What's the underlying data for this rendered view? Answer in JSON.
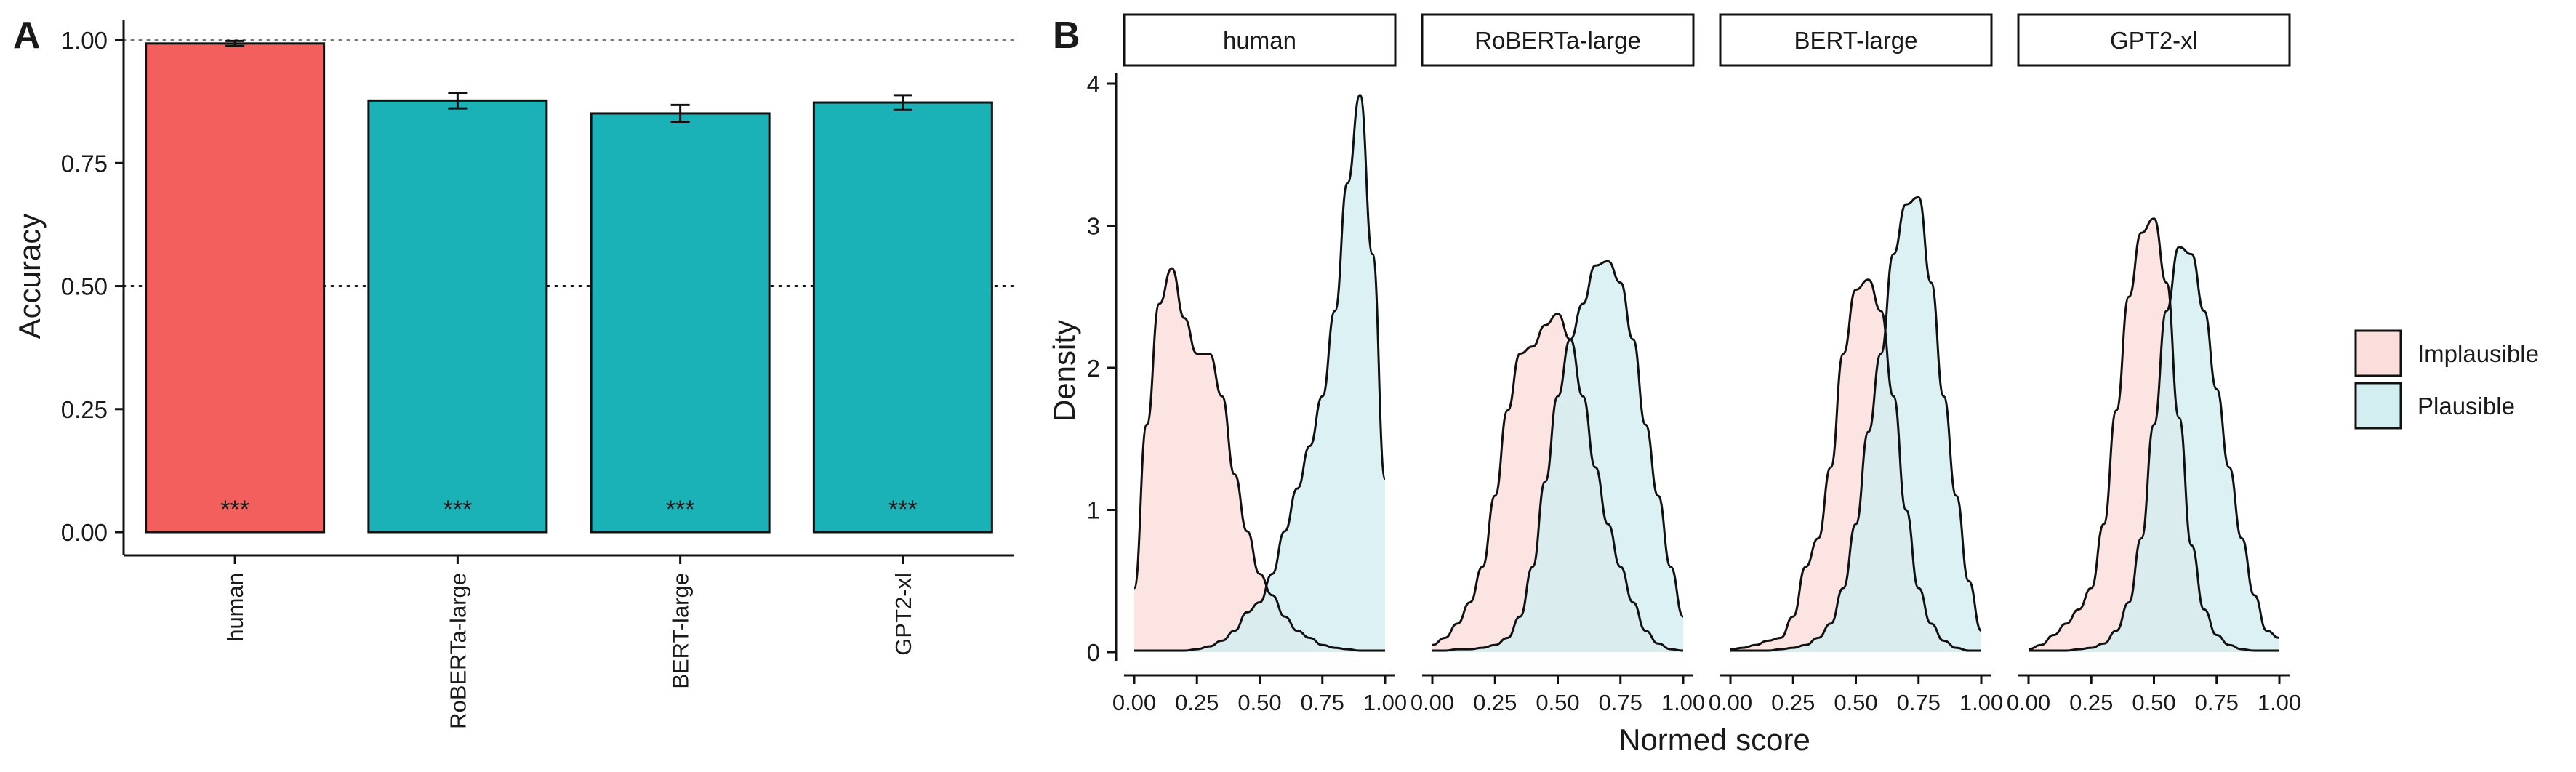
{
  "panel_a": {
    "label": "A",
    "chart_data": {
      "type": "bar",
      "categories": [
        "human",
        "RoBERTa-large",
        "BERT-large",
        "GPT2-xl"
      ],
      "values": [
        0.993,
        0.877,
        0.851,
        0.873
      ],
      "errors": [
        0.005,
        0.016,
        0.017,
        0.015
      ],
      "colors": [
        "#F25F5C",
        "#1AB2B7",
        "#1AB2B7",
        "#1AB2B7"
      ],
      "significance": [
        "***",
        "***",
        "***",
        "***"
      ],
      "ylabel": "Accuracy",
      "xlabel": "",
      "ylim": [
        0,
        1.04
      ],
      "yticks": [
        "0.00",
        "0.25",
        "0.50",
        "0.75",
        "1.00"
      ],
      "reference_lines": [
        {
          "y": 1.0,
          "style": "dotted-grey"
        },
        {
          "y": 0.5,
          "style": "dotted-black"
        }
      ]
    }
  },
  "panel_b": {
    "label": "B",
    "chart_data": {
      "type": "area",
      "facets": [
        "human",
        "RoBERTa-large",
        "BERT-large",
        "GPT2-xl"
      ],
      "xlabel": "Normed score",
      "ylabel": "Density",
      "xlim": [
        0,
        1
      ],
      "ylim": [
        0,
        4
      ],
      "xticks": [
        "0.00",
        "0.25",
        "0.50",
        "0.75",
        "1.00"
      ],
      "yticks": [
        "0",
        "1",
        "2",
        "3",
        "4"
      ],
      "legend": {
        "position": "right",
        "items": [
          {
            "label": "Implausible",
            "color": "#FBDDDC"
          },
          {
            "label": "Plausible",
            "color": "#D2EEF0"
          }
        ]
      },
      "series": {
        "Implausible": [
          {
            "facet": "human",
            "x": [
              0,
              0.05,
              0.1,
              0.15,
              0.2,
              0.25,
              0.3,
              0.35,
              0.4,
              0.45,
              0.5,
              0.55,
              0.6,
              0.65,
              0.7,
              0.75,
              0.8,
              0.85,
              0.9,
              0.95,
              1.0
            ],
            "y": [
              0.45,
              1.6,
              2.45,
              2.7,
              2.35,
              2.1,
              2.1,
              1.8,
              1.25,
              0.85,
              0.55,
              0.4,
              0.25,
              0.15,
              0.1,
              0.05,
              0.03,
              0.02,
              0.01,
              0.01,
              0.01
            ]
          },
          {
            "facet": "RoBERTa-large",
            "x": [
              0,
              0.05,
              0.1,
              0.15,
              0.2,
              0.25,
              0.3,
              0.35,
              0.4,
              0.45,
              0.5,
              0.55,
              0.6,
              0.65,
              0.7,
              0.75,
              0.8,
              0.85,
              0.9,
              0.95,
              1.0
            ],
            "y": [
              0.05,
              0.1,
              0.2,
              0.35,
              0.6,
              1.1,
              1.7,
              2.1,
              2.15,
              2.3,
              2.38,
              2.2,
              1.8,
              1.3,
              0.9,
              0.6,
              0.35,
              0.15,
              0.06,
              0.02,
              0.01
            ]
          },
          {
            "facet": "BERT-large",
            "x": [
              0,
              0.05,
              0.1,
              0.15,
              0.2,
              0.25,
              0.3,
              0.35,
              0.4,
              0.45,
              0.5,
              0.55,
              0.6,
              0.65,
              0.7,
              0.75,
              0.8,
              0.85,
              0.9,
              0.95,
              1.0
            ],
            "y": [
              0.02,
              0.03,
              0.05,
              0.08,
              0.1,
              0.25,
              0.6,
              0.8,
              1.3,
              2.1,
              2.55,
              2.62,
              2.4,
              1.8,
              1.0,
              0.45,
              0.2,
              0.08,
              0.03,
              0.01,
              0.01
            ]
          },
          {
            "facet": "GPT2-xl",
            "x": [
              0,
              0.05,
              0.1,
              0.15,
              0.2,
              0.25,
              0.3,
              0.35,
              0.4,
              0.45,
              0.5,
              0.55,
              0.6,
              0.65,
              0.7,
              0.75,
              0.8,
              0.85,
              0.9,
              0.95,
              1.0
            ],
            "y": [
              0.02,
              0.05,
              0.12,
              0.2,
              0.3,
              0.45,
              0.9,
              1.7,
              2.5,
              2.95,
              3.05,
              2.6,
              1.65,
              0.75,
              0.3,
              0.12,
              0.05,
              0.02,
              0.01,
              0.01,
              0.01
            ]
          }
        ],
        "Plausible": [
          {
            "facet": "human",
            "x": [
              0,
              0.05,
              0.1,
              0.15,
              0.2,
              0.25,
              0.3,
              0.35,
              0.4,
              0.45,
              0.5,
              0.55,
              0.6,
              0.65,
              0.7,
              0.75,
              0.8,
              0.85,
              0.9,
              0.95,
              1.0
            ],
            "y": [
              0.01,
              0.01,
              0.01,
              0.01,
              0.01,
              0.02,
              0.04,
              0.08,
              0.15,
              0.28,
              0.35,
              0.55,
              0.85,
              1.15,
              1.45,
              1.8,
              2.4,
              3.3,
              3.92,
              2.8,
              1.22
            ]
          },
          {
            "facet": "RoBERTa-large",
            "x": [
              0,
              0.05,
              0.1,
              0.15,
              0.2,
              0.25,
              0.3,
              0.35,
              0.4,
              0.45,
              0.5,
              0.55,
              0.6,
              0.65,
              0.7,
              0.75,
              0.8,
              0.85,
              0.9,
              0.95,
              1.0
            ],
            "y": [
              0.01,
              0.01,
              0.02,
              0.02,
              0.03,
              0.05,
              0.1,
              0.25,
              0.6,
              1.2,
              1.8,
              2.2,
              2.45,
              2.72,
              2.75,
              2.6,
              2.2,
              1.6,
              1.1,
              0.6,
              0.25
            ]
          },
          {
            "facet": "BERT-large",
            "x": [
              0,
              0.05,
              0.1,
              0.15,
              0.2,
              0.25,
              0.3,
              0.35,
              0.4,
              0.45,
              0.5,
              0.55,
              0.6,
              0.65,
              0.7,
              0.75,
              0.8,
              0.85,
              0.9,
              0.95,
              1.0
            ],
            "y": [
              0.01,
              0.01,
              0.01,
              0.01,
              0.02,
              0.03,
              0.05,
              0.1,
              0.2,
              0.45,
              0.9,
              1.55,
              2.1,
              2.8,
              3.15,
              3.2,
              2.6,
              1.8,
              1.1,
              0.5,
              0.15
            ]
          },
          {
            "facet": "GPT2-xl",
            "x": [
              0,
              0.05,
              0.1,
              0.15,
              0.2,
              0.25,
              0.3,
              0.35,
              0.4,
              0.45,
              0.5,
              0.55,
              0.6,
              0.65,
              0.7,
              0.75,
              0.8,
              0.85,
              0.9,
              0.95,
              1.0
            ],
            "y": [
              0.01,
              0.01,
              0.01,
              0.01,
              0.02,
              0.03,
              0.06,
              0.15,
              0.35,
              0.8,
              1.6,
              2.4,
              2.85,
              2.8,
              2.4,
              1.85,
              1.3,
              0.8,
              0.4,
              0.15,
              0.1
            ]
          }
        ]
      }
    }
  }
}
